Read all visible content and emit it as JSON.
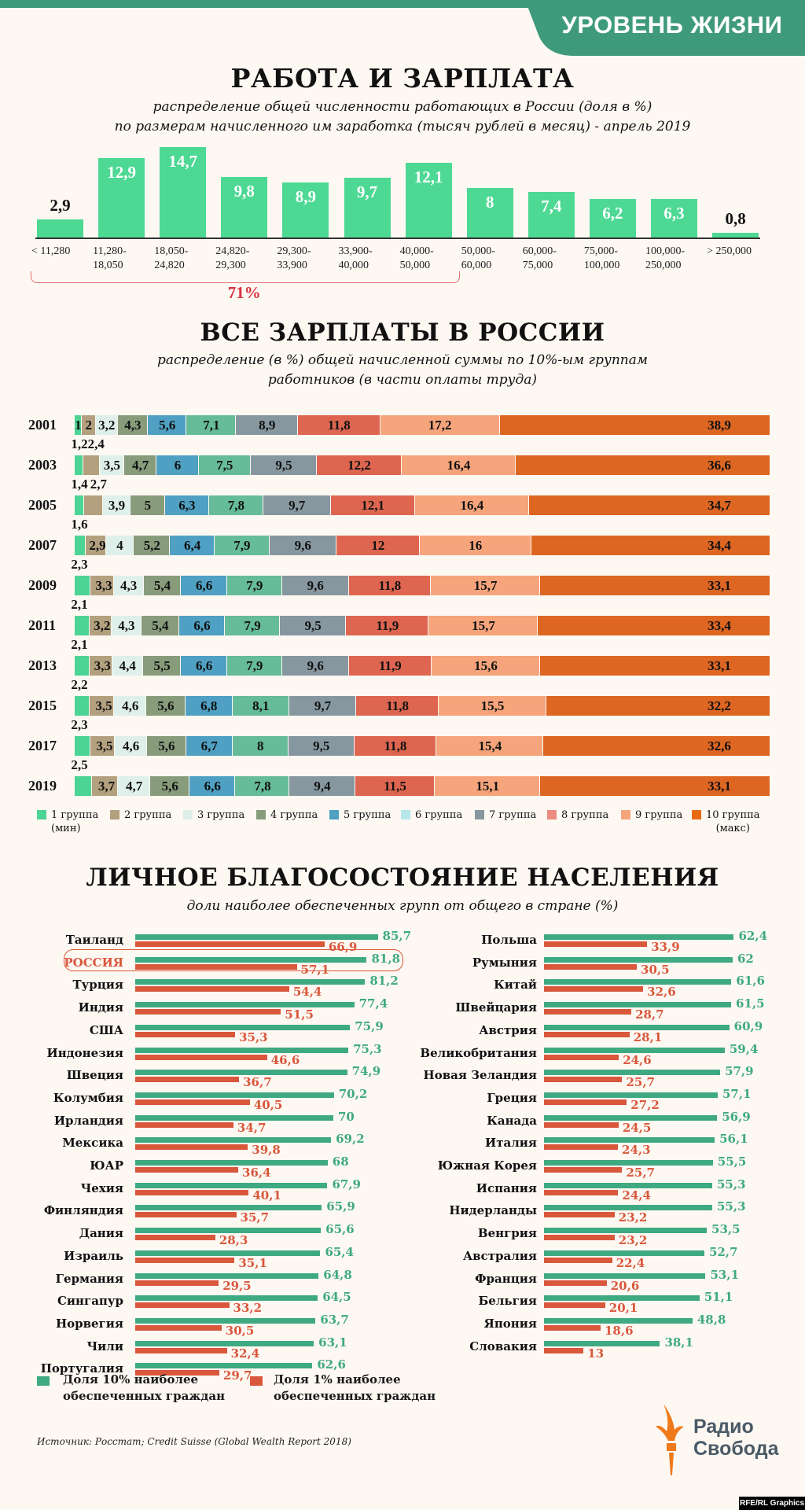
{
  "header": {
    "section_tag": "УРОВЕНЬ ЖИЗНИ",
    "brand_color": "#3f9a7c"
  },
  "chart_data": [
    {
      "type": "bar",
      "title": "РАБОТА И ЗАРПЛАТА",
      "subtitle_lines": [
        "распределение общей численности работающих в России (доля в %)",
        "по размерам начисленного им заработка (тысяч рублей в месяц) - апрель 2019"
      ],
      "categories": [
        "< 11,280",
        "11,280-\n18,050",
        "18,050-\n24,820",
        "24,820-\n29,300",
        "29,300-\n33,900",
        "33,900-\n40,000",
        "40,000-\n50,000",
        "50,000-\n60,000",
        "60,000-\n75,000",
        "75,000-\n100,000",
        "100,000-\n250,000",
        "> 250,000"
      ],
      "values": [
        2.9,
        12.9,
        14.7,
        9.8,
        8.9,
        9.7,
        12.1,
        8,
        7.4,
        6.2,
        6.3,
        0.8
      ],
      "value_labels": [
        "2,9",
        "12,9",
        "14,7",
        "9,8",
        "8,9",
        "9,7",
        "12,1",
        "8",
        "7,4",
        "6,2",
        "6,3",
        "0,8"
      ],
      "bar_color": "#4dd894",
      "annotation": {
        "text": "71%",
        "covers_categories": [
          0,
          6
        ],
        "color": "#d9333f"
      }
    },
    {
      "type": "bar",
      "orientation": "horizontal-stacked",
      "title": "ВСЕ ЗАРПЛАТЫ В РОССИИ",
      "subtitle_lines": [
        "распределение (в %) общей начисленной суммы по 10%-ым группам",
        "работников (в части оплаты труда)"
      ],
      "categories": [
        "2001",
        "2003",
        "2005",
        "2007",
        "2009",
        "2011",
        "2013",
        "2015",
        "2017",
        "2019"
      ],
      "series": [
        {
          "name": "1 группа (мин)",
          "values": [
            1,
            1.2,
            1.4,
            1.6,
            2.3,
            2.1,
            2.1,
            2.2,
            2.3,
            2.5
          ],
          "labels": [
            "1",
            "1,2",
            "1,4",
            "1,6",
            "2,3",
            "2,1",
            "2,1",
            "2,2",
            "2,3",
            "2,5"
          ],
          "color": "#4cd494",
          "legend_color": "#4cd494"
        },
        {
          "name": "2 группа",
          "values": [
            2,
            2.4,
            2.7,
            2.9,
            3.3,
            3.2,
            3.3,
            3.5,
            3.5,
            3.7
          ],
          "labels": [
            "2",
            "2,4",
            "2,7",
            "2,9",
            "3,3",
            "3,2",
            "3,3",
            "3,5",
            "3,5",
            "3,7"
          ],
          "color": "#b2a07e",
          "legend_color": "#b2a07e"
        },
        {
          "name": "3 группа",
          "values": [
            3.2,
            3.5,
            3.9,
            4,
            4.3,
            4.3,
            4.4,
            4.6,
            4.6,
            4.7
          ],
          "labels": [
            "3,2",
            "3,5",
            "3,9",
            "4",
            "4,3",
            "4,3",
            "4,4",
            "4,6",
            "4,6",
            "4,7"
          ],
          "color": "#dff0ea",
          "legend_color": "#dcefe8"
        },
        {
          "name": "4 группа",
          "values": [
            4.3,
            4.7,
            5,
            5.2,
            5.4,
            5.4,
            5.5,
            5.6,
            5.6,
            5.6
          ],
          "labels": [
            "4,3",
            "4,7",
            "5",
            "5,2",
            "5,4",
            "5,4",
            "5,5",
            "5,6",
            "5,6",
            "5,6"
          ],
          "color": "#889c7c",
          "legend_color": "#889c7c"
        },
        {
          "name": "5 группа",
          "values": [
            5.6,
            6,
            6.3,
            6.4,
            6.6,
            6.6,
            6.6,
            6.8,
            6.7,
            6.6
          ],
          "labels": [
            "5,6",
            "6",
            "6,3",
            "6,4",
            "6,6",
            "6,6",
            "6,6",
            "6,8",
            "6,7",
            "6,6"
          ],
          "color": "#4fa0c2",
          "legend_color": "#4fa0c2"
        },
        {
          "name": "6 группа",
          "values": [
            7.1,
            7.5,
            7.8,
            7.9,
            7.9,
            7.9,
            7.9,
            8.1,
            8,
            7.8
          ],
          "labels": [
            "7,1",
            "7,5",
            "7,8",
            "7,9",
            "7,9",
            "7,9",
            "7,9",
            "8,1",
            "8",
            "7,8"
          ],
          "color": "#66bb98",
          "legend_color": "#b4e6ea"
        },
        {
          "name": "7 группа",
          "values": [
            8.9,
            9.5,
            9.7,
            9.6,
            9.6,
            9.5,
            9.6,
            9.7,
            9.5,
            9.4
          ],
          "labels": [
            "8,9",
            "9,5",
            "9,7",
            "9,6",
            "9,6",
            "9,5",
            "9,6",
            "9,7",
            "9,5",
            "9,4"
          ],
          "color": "#8797a0",
          "legend_color": "#8797a0"
        },
        {
          "name": "8 группа",
          "values": [
            11.8,
            12.2,
            12.1,
            12,
            11.8,
            11.9,
            11.9,
            11.8,
            11.8,
            11.5
          ],
          "labels": [
            "11,8",
            "12,2",
            "12,1",
            "12",
            "11,8",
            "11,9",
            "11,9",
            "11,8",
            "11,8",
            "11,5"
          ],
          "color": "#de6650",
          "legend_color": "#ea8a80"
        },
        {
          "name": "9 группа",
          "values": [
            17.2,
            16.4,
            16.4,
            16,
            15.7,
            15.7,
            15.6,
            15.5,
            15.4,
            15.1
          ],
          "labels": [
            "17,2",
            "16,4",
            "16,4",
            "16",
            "15,7",
            "15,7",
            "15,6",
            "15,5",
            "15,4",
            "15,1"
          ],
          "color": "#f6a47b",
          "legend_color": "#f6a47b"
        },
        {
          "name": "10 группа (макс)",
          "values": [
            38.9,
            36.6,
            34.7,
            34.4,
            33.1,
            33.4,
            33.1,
            32.2,
            32.6,
            33.1
          ],
          "labels": [
            "38,9",
            "36,6",
            "34,7",
            "34,4",
            "33,1",
            "33,4",
            "33,1",
            "32,2",
            "32,6",
            "33,1"
          ],
          "color": "#dd6622",
          "legend_color": "#e86a10"
        }
      ],
      "legend": [
        "1 группа\n(мин)",
        "2 группа",
        "3 группа",
        "4 группа",
        "5 группа",
        "6 группа",
        "7 группа",
        "8 группа",
        "9 группа",
        "10 группа\n(макс)"
      ],
      "legend_placement": "bottom"
    },
    {
      "type": "bar",
      "orientation": "horizontal-grouped",
      "title": "ЛИЧНОЕ БЛАГОСОСТОЯНИЕ НАСЕЛЕНИЯ",
      "subtitle": "доли наиболее обеспеченных групп от общего в стране (%)",
      "series_meta": [
        {
          "name": "Доля 10% наиболее\nобеспеченных граждан",
          "color": "#3fa982"
        },
        {
          "name": "Доля 1% наиболее\nобеспеченных граждан",
          "color": "#d9573b"
        }
      ],
      "highlight": "РОССИЯ",
      "highlight_color": "#d9573b",
      "columns": [
        [
          {
            "country": "Таиланд",
            "top10": 85.7,
            "top10_label": "85,7",
            "top1": 66.9,
            "top1_label": "66,9"
          },
          {
            "country": "РОССИЯ",
            "top10": 81.8,
            "top10_label": "81,8",
            "top1": 57.1,
            "top1_label": "57,1"
          },
          {
            "country": "Турция",
            "top10": 81.2,
            "top10_label": "81,2",
            "top1": 54.4,
            "top1_label": "54,4"
          },
          {
            "country": "Индия",
            "top10": 77.4,
            "top10_label": "77,4",
            "top1": 51.5,
            "top1_label": "51,5"
          },
          {
            "country": "США",
            "top10": 75.9,
            "top10_label": "75,9",
            "top1": 35.3,
            "top1_label": "35,3"
          },
          {
            "country": "Индонезия",
            "top10": 75.3,
            "top10_label": "75,3",
            "top1": 46.6,
            "top1_label": "46,6"
          },
          {
            "country": "Швеция",
            "top10": 74.9,
            "top10_label": "74,9",
            "top1": 36.7,
            "top1_label": "36,7"
          },
          {
            "country": "Колумбия",
            "top10": 70.2,
            "top10_label": "70,2",
            "top1": 40.5,
            "top1_label": "40,5"
          },
          {
            "country": "Ирландия",
            "top10": 70,
            "top10_label": "70",
            "top1": 34.7,
            "top1_label": "34,7"
          },
          {
            "country": "Мексика",
            "top10": 69.2,
            "top10_label": "69,2",
            "top1": 39.8,
            "top1_label": "39,8"
          },
          {
            "country": "ЮАР",
            "top10": 68,
            "top10_label": "68",
            "top1": 36.4,
            "top1_label": "36,4"
          },
          {
            "country": "Чехия",
            "top10": 67.9,
            "top10_label": "67,9",
            "top1": 40.1,
            "top1_label": "40,1"
          },
          {
            "country": "Финляндия",
            "top10": 65.9,
            "top10_label": "65,9",
            "top1": 35.7,
            "top1_label": "35,7"
          },
          {
            "country": "Дания",
            "top10": 65.6,
            "top10_label": "65,6",
            "top1": 28.3,
            "top1_label": "28,3"
          },
          {
            "country": "Израиль",
            "top10": 65.4,
            "top10_label": "65,4",
            "top1": 35.1,
            "top1_label": "35,1"
          },
          {
            "country": "Германия",
            "top10": 64.8,
            "top10_label": "64,8",
            "top1": 29.5,
            "top1_label": "29,5"
          },
          {
            "country": "Сингапур",
            "top10": 64.5,
            "top10_label": "64,5",
            "top1": 33.2,
            "top1_label": "33,2"
          },
          {
            "country": "Норвегия",
            "top10": 63.7,
            "top10_label": "63,7",
            "top1": 30.5,
            "top1_label": "30,5"
          },
          {
            "country": "Чили",
            "top10": 63.1,
            "top10_label": "63,1",
            "top1": 32.4,
            "top1_label": "32,4"
          },
          {
            "country": "Португалия",
            "top10": 62.6,
            "top10_label": "62,6",
            "top1": 29.7,
            "top1_label": "29,7"
          }
        ],
        [
          {
            "country": "Польша",
            "top10": 62.4,
            "top10_label": "62,4",
            "top1": 33.9,
            "top1_label": "33,9"
          },
          {
            "country": "Румыния",
            "top10": 62,
            "top10_label": "62",
            "top1": 30.5,
            "top1_label": "30,5"
          },
          {
            "country": "Китай",
            "top10": 61.6,
            "top10_label": "61,6",
            "top1": 32.6,
            "top1_label": "32,6"
          },
          {
            "country": "Швейцария",
            "top10": 61.5,
            "top10_label": "61,5",
            "top1": 28.7,
            "top1_label": "28,7"
          },
          {
            "country": "Австрия",
            "top10": 60.9,
            "top10_label": "60,9",
            "top1": 28.1,
            "top1_label": "28,1"
          },
          {
            "country": "Великобритания",
            "top10": 59.4,
            "top10_label": "59,4",
            "top1": 24.6,
            "top1_label": "24,6"
          },
          {
            "country": "Новая Зеландия",
            "top10": 57.9,
            "top10_label": "57,9",
            "top1": 25.7,
            "top1_label": "25,7"
          },
          {
            "country": "Греция",
            "top10": 57.1,
            "top10_label": "57,1",
            "top1": 27.2,
            "top1_label": "27,2"
          },
          {
            "country": "Канада",
            "top10": 56.9,
            "top10_label": "56,9",
            "top1": 24.5,
            "top1_label": "24,5"
          },
          {
            "country": "Италия",
            "top10": 56.1,
            "top10_label": "56,1",
            "top1": 24.3,
            "top1_label": "24,3"
          },
          {
            "country": "Южная Корея",
            "top10": 55.5,
            "top10_label": "55,5",
            "top1": 25.7,
            "top1_label": "25,7"
          },
          {
            "country": "Испания",
            "top10": 55.3,
            "top10_label": "55,3",
            "top1": 24.4,
            "top1_label": "24,4"
          },
          {
            "country": "Нидерланды",
            "top10": 55.3,
            "top10_label": "55,3",
            "top1": 23.2,
            "top1_label": "23,2"
          },
          {
            "country": "Венгрия",
            "top10": 53.5,
            "top10_label": "53,5",
            "top1": 23.2,
            "top1_label": "23,2"
          },
          {
            "country": "Австралия",
            "top10": 52.7,
            "top10_label": "52,7",
            "top1": 22.4,
            "top1_label": "22,4"
          },
          {
            "country": "Франция",
            "top10": 53.1,
            "top10_label": "53,1",
            "top1": 20.6,
            "top1_label": "20,6"
          },
          {
            "country": "Бельгия",
            "top10": 51.1,
            "top10_label": "51,1",
            "top1": 20.1,
            "top1_label": "20,1"
          },
          {
            "country": "Япония",
            "top10": 48.8,
            "top10_label": "48,8",
            "top1": 18.6,
            "top1_label": "18,6"
          },
          {
            "country": "Словакия",
            "top10": 38.1,
            "top10_label": "38,1",
            "top1": 13,
            "top1_label": "13"
          }
        ]
      ]
    }
  ],
  "footer": {
    "source": "Источник: Росстат; Credit Suisse (Global Wealth Report 2018)",
    "logo_line1": "Радио",
    "logo_line2": "Свобода",
    "logo_color": "#f07a1a",
    "credit": "RFE/RL Graphics"
  }
}
